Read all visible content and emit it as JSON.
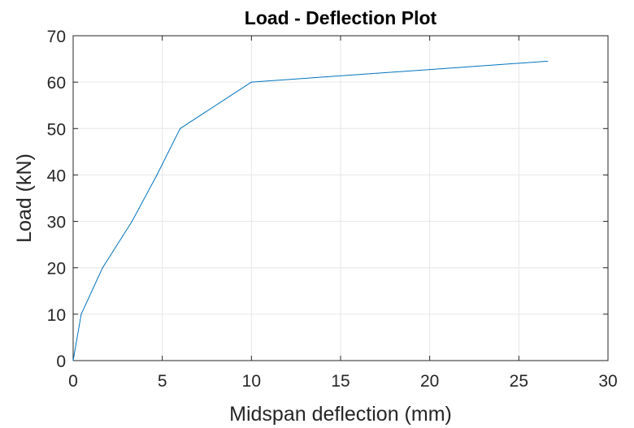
{
  "chart_data": {
    "type": "line",
    "title": "Load - Deflection Plot",
    "xlabel": "Midspan deflection (mm)",
    "ylabel": "Load (kN)",
    "xlim": [
      0,
      30
    ],
    "ylim": [
      0,
      70
    ],
    "xticks": [
      "0",
      "5",
      "10",
      "15",
      "20",
      "25",
      "30"
    ],
    "yticks": [
      "0",
      "10",
      "20",
      "30",
      "40",
      "50",
      "60",
      "70"
    ],
    "grid": true,
    "line_color": "#0072BD",
    "grid_color": "#e6e6e6",
    "axis_color": "#262626",
    "series": [
      {
        "x": [
          0,
          0.45,
          1.65,
          3.3,
          4.7,
          6.0,
          10.0,
          26.6
        ],
        "y": [
          0,
          10,
          20,
          30,
          40,
          50,
          60,
          64.5
        ]
      }
    ]
  }
}
